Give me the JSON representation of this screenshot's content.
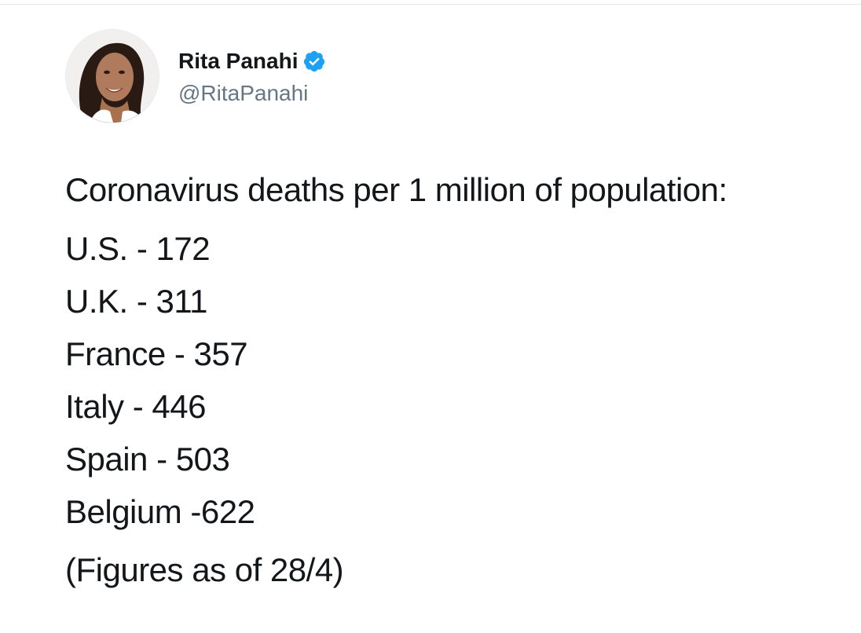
{
  "author": {
    "display_name": "Rita Panahi",
    "handle": "@RitaPanahi",
    "verified": true,
    "avatar_icon": "profile-photo",
    "verified_icon": "verified-badge-icon"
  },
  "tweet": {
    "intro": "Coronavirus deaths per 1 million of population:",
    "stats": [
      "U.S. - 172",
      "U.K. - 311",
      "France - 357",
      "Italy - 446",
      "Spain - 503",
      "Belgium -622"
    ],
    "note": "(Figures as of 28/4)"
  },
  "colors": {
    "verified_blue": "#1da1f2",
    "text": "#14171a",
    "secondary_text": "#657786",
    "divider": "#e1e8ed"
  }
}
